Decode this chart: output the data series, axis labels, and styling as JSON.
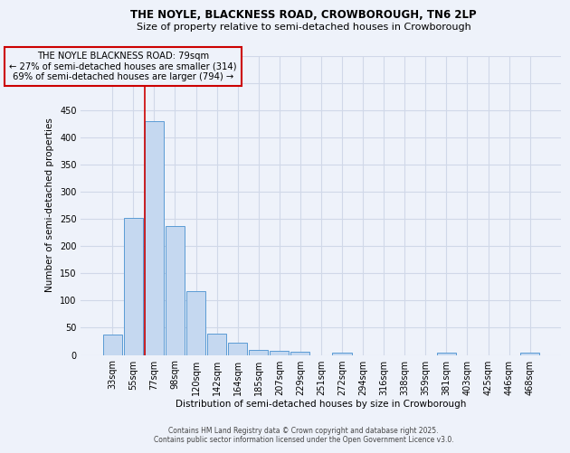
{
  "title1": "THE NOYLE, BLACKNESS ROAD, CROWBOROUGH, TN6 2LP",
  "title2": "Size of property relative to semi-detached houses in Crowborough",
  "xlabel": "Distribution of semi-detached houses by size in Crowborough",
  "ylabel": "Number of semi-detached properties",
  "bar_labels": [
    "33sqm",
    "55sqm",
    "77sqm",
    "98sqm",
    "120sqm",
    "142sqm",
    "164sqm",
    "185sqm",
    "207sqm",
    "229sqm",
    "251sqm",
    "272sqm",
    "294sqm",
    "316sqm",
    "338sqm",
    "359sqm",
    "381sqm",
    "403sqm",
    "425sqm",
    "446sqm",
    "468sqm"
  ],
  "bar_values": [
    38,
    251,
    430,
    237,
    118,
    40,
    23,
    10,
    8,
    6,
    0,
    5,
    0,
    0,
    0,
    0,
    5,
    0,
    0,
    0,
    5
  ],
  "bar_color": "#c5d8f0",
  "bar_edge_color": "#5b9bd5",
  "grid_color": "#d0d8e8",
  "background_color": "#eef2fa",
  "red_line_index": 2,
  "annotation_title": "THE NOYLE BLACKNESS ROAD: 79sqm",
  "annotation_line1": "← 27% of semi-detached houses are smaller (314)",
  "annotation_line2": "69% of semi-detached houses are larger (794) →",
  "annotation_color": "#cc0000",
  "footer1": "Contains HM Land Registry data © Crown copyright and database right 2025.",
  "footer2": "Contains public sector information licensed under the Open Government Licence v3.0.",
  "ylim": [
    0,
    550
  ],
  "yticks": [
    0,
    50,
    100,
    150,
    200,
    250,
    300,
    350,
    400,
    450,
    500,
    550
  ],
  "title1_fontsize": 8.5,
  "title2_fontsize": 8.0,
  "xlabel_fontsize": 7.5,
  "ylabel_fontsize": 7.5,
  "tick_fontsize": 7,
  "footer_fontsize": 5.5
}
